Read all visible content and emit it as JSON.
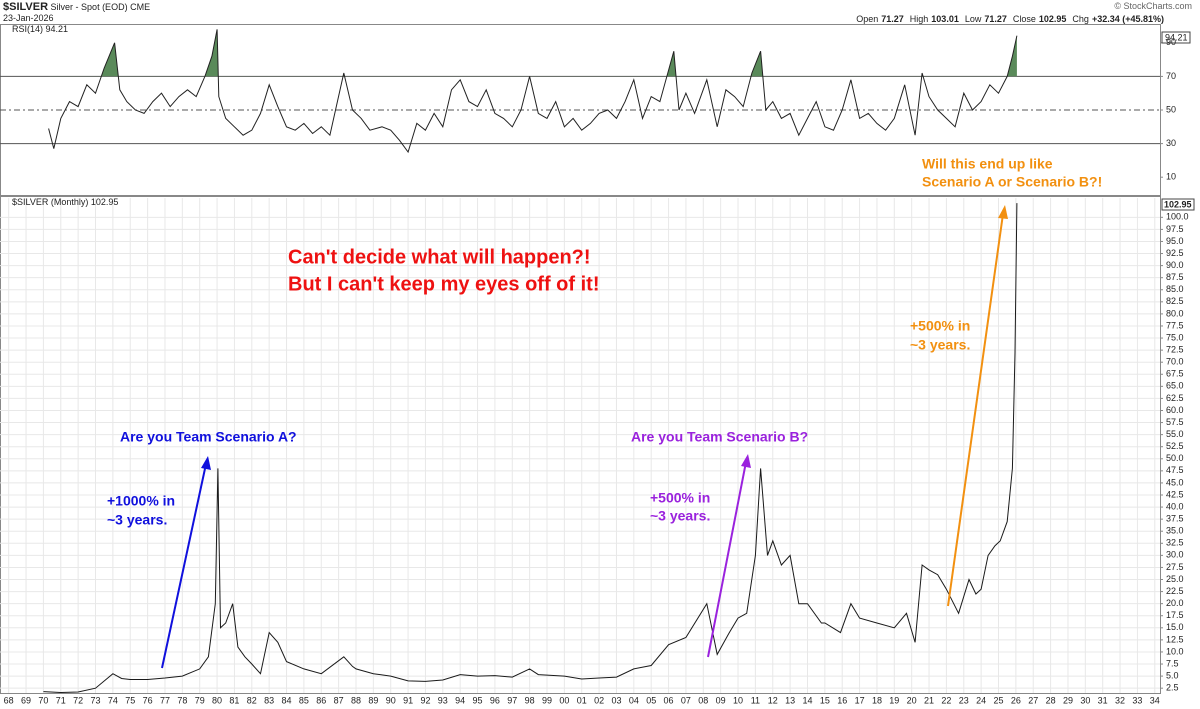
{
  "header": {
    "symbol": "$SILVER",
    "description": "Silver - Spot (EOD)",
    "exchange": "CME",
    "date": "23-Jan-2026",
    "copyright": "© StockCharts.com",
    "quote": [
      {
        "label": "Open",
        "value": 71.27
      },
      {
        "label": "High",
        "value": 103.01
      },
      {
        "label": "Low",
        "value": 71.27
      },
      {
        "label": "Close",
        "value": 102.95
      },
      {
        "label": "Chg",
        "value": "+32.34 (+45.81%)"
      }
    ]
  },
  "chart_data": [
    {
      "type": "line",
      "title": "RSI(14)",
      "color": "#222222",
      "fill_color": "#5a8a5a",
      "x": [
        1970.3,
        1970.6,
        1971,
        1971.5,
        1972,
        1972.5,
        1973,
        1973.5,
        1974.1,
        1974.4,
        1974.8,
        1975.3,
        1975.8,
        1976.3,
        1976.8,
        1977.3,
        1977.8,
        1978.3,
        1978.8,
        1979.3,
        1979.7,
        1980.0,
        1980.1,
        1980.5,
        1981,
        1981.5,
        1982,
        1982.5,
        1983,
        1983.5,
        1984,
        1984.5,
        1985,
        1985.5,
        1986,
        1986.5,
        1987.3,
        1987.8,
        1988.3,
        1988.8,
        1989.5,
        1990,
        1990.5,
        1991,
        1991.5,
        1992,
        1992.5,
        1993,
        1993.5,
        1994,
        1994.5,
        1995,
        1995.5,
        1996,
        1996.5,
        1997,
        1997.5,
        1998,
        1998.5,
        1999,
        1999.5,
        2000,
        2000.5,
        2001,
        2001.5,
        2002,
        2002.5,
        2003,
        2003.5,
        2004,
        2004.5,
        2005,
        2005.5,
        2006.3,
        2006.6,
        2007,
        2007.5,
        2008.2,
        2008.8,
        2009.3,
        2009.8,
        2010.3,
        2010.8,
        2011.3,
        2011.6,
        2012,
        2012.5,
        2013,
        2013.5,
        2014,
        2014.5,
        2015,
        2015.5,
        2016,
        2016.5,
        2017,
        2017.5,
        2018,
        2018.5,
        2019,
        2019.6,
        2020.2,
        2020.6,
        2021,
        2021.5,
        2022,
        2022.5,
        2023,
        2023.5,
        2024,
        2024.5,
        2025,
        2025.5,
        2025.8,
        2026.06
      ],
      "values": [
        39,
        27,
        45,
        55,
        52,
        65,
        60,
        75,
        90,
        62,
        55,
        50,
        48,
        55,
        60,
        52,
        58,
        62,
        58,
        70,
        82,
        98,
        58,
        45,
        40,
        35,
        38,
        48,
        65,
        52,
        40,
        38,
        42,
        36,
        40,
        35,
        72,
        50,
        45,
        38,
        40,
        38,
        32,
        25,
        42,
        38,
        48,
        40,
        62,
        68,
        55,
        52,
        62,
        48,
        45,
        40,
        50,
        70,
        48,
        45,
        55,
        40,
        45,
        38,
        42,
        48,
        50,
        45,
        55,
        68,
        45,
        58,
        55,
        85,
        50,
        60,
        48,
        68,
        40,
        62,
        58,
        52,
        72,
        85,
        50,
        55,
        45,
        48,
        35,
        45,
        55,
        40,
        38,
        50,
        68,
        45,
        48,
        42,
        38,
        45,
        65,
        35,
        72,
        58,
        50,
        45,
        40,
        60,
        50,
        55,
        65,
        60,
        70,
        82,
        94.21
      ],
      "xlim": [
        1967.5,
        2034.3
      ],
      "ylim": [
        0,
        100
      ],
      "yticks": [
        10,
        30,
        50,
        70,
        90
      ],
      "reference_lines": [
        30,
        50,
        70
      ],
      "overbought": 70
    },
    {
      "type": "line",
      "title": "$SILVER (Monthly)",
      "color": "#1a1a1a",
      "grid": true,
      "x": [
        1970,
        1971,
        1972,
        1973,
        1974.0,
        1974.5,
        1975,
        1976,
        1977,
        1978,
        1979,
        1979.5,
        1979.9,
        1980.05,
        1980.2,
        1980.5,
        1980.9,
        1981.2,
        1981.6,
        1982,
        1982.5,
        1983.0,
        1983.5,
        1984,
        1985,
        1986,
        1987.3,
        1987.8,
        1988,
        1989,
        1990,
        1991,
        1992,
        1993,
        1994,
        1995,
        1996,
        1997,
        1998,
        1998.5,
        1999,
        2000,
        2001,
        2002,
        2003,
        2004,
        2005,
        2006,
        2007,
        2008.2,
        2008.8,
        2009.5,
        2010,
        2010.5,
        2011.0,
        2011.3,
        2011.7,
        2012,
        2012.5,
        2013,
        2013.5,
        2014,
        2014.8,
        2015,
        2015.9,
        2016.5,
        2017,
        2018,
        2019,
        2019.7,
        2020.2,
        2020.6,
        2021,
        2021.5,
        2022,
        2022.7,
        2023.3,
        2023.7,
        2024,
        2024.4,
        2024.8,
        2025.1,
        2025.5,
        2025.8,
        2025.95,
        2026.06
      ],
      "values": [
        1.8,
        1.6,
        1.7,
        2.5,
        5.5,
        4.5,
        4.3,
        4.3,
        4.6,
        5.0,
        6.5,
        9,
        20,
        48,
        15,
        16,
        20,
        11,
        9,
        7.5,
        5.5,
        14,
        12,
        8,
        6.5,
        5.5,
        9,
        7,
        6.5,
        5.5,
        5,
        4,
        3.9,
        4.2,
        5.3,
        5,
        5.1,
        4.8,
        6.5,
        5.3,
        5.2,
        5,
        4.4,
        4.6,
        4.8,
        6.5,
        7.2,
        11.5,
        13,
        20,
        9.5,
        14,
        17,
        18,
        30,
        48,
        30,
        33,
        28,
        30,
        20,
        20,
        16,
        16,
        14,
        20,
        17,
        16,
        15,
        18,
        12,
        28,
        27,
        26,
        23,
        18,
        25,
        22,
        23,
        30,
        32,
        33,
        37,
        48,
        72,
        102.95
      ],
      "xlim": [
        1967.5,
        2034.3
      ],
      "ylim": [
        1.5,
        104
      ],
      "yticks": [
        2.5,
        {
          "value": 5,
          "label": "5.0"
        },
        7.5,
        {
          "value": 10,
          "label": "10.0"
        },
        12.5,
        {
          "value": 15,
          "label": "15.0"
        },
        17.5,
        {
          "value": 20,
          "label": "20.0"
        },
        22.5,
        {
          "value": 25,
          "label": "25.0"
        },
        27.5,
        {
          "value": 30,
          "label": "30.0"
        },
        32.5,
        {
          "value": 35,
          "label": "35.0"
        },
        37.5,
        {
          "value": 40,
          "label": "40.0"
        },
        42.5,
        {
          "value": 45,
          "label": "45.0"
        },
        47.5,
        {
          "value": 50,
          "label": "50.0"
        },
        52.5,
        {
          "value": 55,
          "label": "55.0"
        },
        57.5,
        {
          "value": 60,
          "label": "60.0"
        },
        62.5,
        {
          "value": 65,
          "label": "65.0"
        },
        67.5,
        {
          "value": 70,
          "label": "70.0"
        },
        72.5,
        {
          "value": 75,
          "label": "75.0"
        },
        77.5,
        {
          "value": 80,
          "label": "80.0"
        },
        82.5,
        {
          "value": 85,
          "label": "85.0"
        },
        87.5,
        {
          "value": 90,
          "label": "90.0"
        },
        92.5,
        {
          "value": 95,
          "label": "95.0"
        },
        97.5,
        {
          "value": 100,
          "label": "100.0"
        }
      ],
      "xticks": [
        {
          "value": 1968,
          "label": "68"
        },
        {
          "value": 1969,
          "label": "69"
        },
        {
          "value": 1970,
          "label": "70"
        },
        {
          "value": 1971,
          "label": "71"
        },
        {
          "value": 1972,
          "label": "72"
        },
        {
          "value": 1973,
          "label": "73"
        },
        {
          "value": 1974,
          "label": "74"
        },
        {
          "value": 1975,
          "label": "75"
        },
        {
          "value": 1976,
          "label": "76"
        },
        {
          "value": 1977,
          "label": "77"
        },
        {
          "value": 1978,
          "label": "78"
        },
        {
          "value": 1979,
          "label": "79"
        },
        {
          "value": 1980,
          "label": "80"
        },
        {
          "value": 1981,
          "label": "81"
        },
        {
          "value": 1982,
          "label": "82"
        },
        {
          "value": 1983,
          "label": "83"
        },
        {
          "value": 1984,
          "label": "84"
        },
        {
          "value": 1985,
          "label": "85"
        },
        {
          "value": 1986,
          "label": "86"
        },
        {
          "value": 1987,
          "label": "87"
        },
        {
          "value": 1988,
          "label": "88"
        },
        {
          "value": 1989,
          "label": "89"
        },
        {
          "value": 1990,
          "label": "90"
        },
        {
          "value": 1991,
          "label": "91"
        },
        {
          "value": 1992,
          "label": "92"
        },
        {
          "value": 1993,
          "label": "93"
        },
        {
          "value": 1994,
          "label": "94"
        },
        {
          "value": 1995,
          "label": "95"
        },
        {
          "value": 1996,
          "label": "96"
        },
        {
          "value": 1997,
          "label": "97"
        },
        {
          "value": 1998,
          "label": "98"
        },
        {
          "value": 1999,
          "label": "99"
        },
        {
          "value": 2000,
          "label": "00"
        },
        {
          "value": 2001,
          "label": "01"
        },
        {
          "value": 2002,
          "label": "02"
        },
        {
          "value": 2003,
          "label": "03"
        },
        {
          "value": 2004,
          "label": "04"
        },
        {
          "value": 2005,
          "label": "05"
        },
        {
          "value": 2006,
          "label": "06"
        },
        {
          "value": 2007,
          "label": "07"
        },
        {
          "value": 2008,
          "label": "08"
        },
        {
          "value": 2009,
          "label": "09"
        },
        {
          "value": 2010,
          "label": "10"
        },
        {
          "value": 2011,
          "label": "11"
        },
        {
          "value": 2012,
          "label": "12"
        },
        {
          "value": 2013,
          "label": "13"
        },
        {
          "value": 2014,
          "label": "14"
        },
        {
          "value": 2015,
          "label": "15"
        },
        {
          "value": 2016,
          "label": "16"
        },
        {
          "value": 2017,
          "label": "17"
        },
        {
          "value": 2018,
          "label": "18"
        },
        {
          "value": 2019,
          "label": "19"
        },
        {
          "value": 2020,
          "label": "20"
        },
        {
          "value": 2021,
          "label": "21"
        },
        {
          "value": 2022,
          "label": "22"
        },
        {
          "value": 2023,
          "label": "23"
        },
        {
          "value": 2024,
          "label": "24"
        },
        {
          "value": 2025,
          "label": "25"
        },
        {
          "value": 2026,
          "label": "26"
        },
        {
          "value": 2027,
          "label": "27"
        },
        {
          "value": 2028,
          "label": "28"
        },
        {
          "value": 2029,
          "label": "29"
        },
        {
          "value": 2030,
          "label": "30"
        },
        {
          "value": 2031,
          "label": "31"
        },
        {
          "value": 2032,
          "label": "32"
        },
        {
          "value": 2033,
          "label": "33"
        },
        {
          "value": 2034,
          "label": "34"
        }
      ],
      "annotations": {
        "center": [
          "Can't decide what will happen?!",
          "But I can't keep my eyes off of it!"
        ],
        "scenario_a": [
          "Are you Team Scenario A?"
        ],
        "gain_a": [
          "+1000% in",
          "~3 years."
        ],
        "scenario_b": [
          "Are you Team Scenario B?"
        ],
        "gain_b": [
          "+500% in",
          "~3 years."
        ],
        "question": [
          "Will this end up like",
          "Scenario A or Scenario B?!"
        ],
        "gain_now": [
          "+500% in",
          "~3 years."
        ]
      }
    }
  ]
}
